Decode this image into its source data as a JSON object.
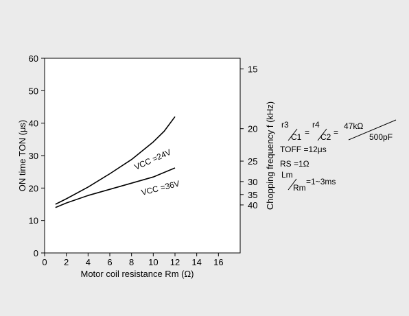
{
  "chart_data": {
    "type": "line",
    "xlabel": "Motor coil resistance Rm (Ω)",
    "ylabel": "ON time TON (μs)",
    "y2label": "Chopping frequency f (kHz)",
    "xlim": [
      0,
      18
    ],
    "ylim": [
      0,
      60
    ],
    "x_ticks": [
      "0",
      "2",
      "4",
      "6",
      "8",
      "10",
      "12",
      "14",
      "16"
    ],
    "y_ticks": [
      "0",
      "10",
      "20",
      "30",
      "40",
      "50",
      "60"
    ],
    "y2_ticks": [
      {
        "label": "15",
        "ton": 56.7
      },
      {
        "label": "20",
        "ton": 38.3
      },
      {
        "label": "25",
        "ton": 28.3
      },
      {
        "label": "30",
        "ton": 22.0
      },
      {
        "label": "35",
        "ton": 18.0
      },
      {
        "label": "40",
        "ton": 14.8
      }
    ],
    "series": [
      {
        "name": "VCC =24V",
        "x": [
          1,
          2,
          4,
          6,
          8,
          10,
          11,
          12
        ],
        "y": [
          15.0,
          16.7,
          20.3,
          24.4,
          28.8,
          34.2,
          37.5,
          42.0
        ]
      },
      {
        "name": "VCC =36V",
        "x": [
          1,
          2,
          4,
          6,
          8,
          10,
          12
        ],
        "y": [
          14.0,
          15.4,
          17.7,
          19.6,
          21.5,
          23.4,
          26.2
        ]
      }
    ],
    "annotations": {
      "formula_r3": "r3",
      "formula_c1": "C1",
      "formula_r4": "r4",
      "formula_c2": "C2",
      "formula_eq1": "=",
      "formula_eq2": "=",
      "formula_num": "47kΩ",
      "formula_den": "500pF",
      "toff": "TOFF =12μs",
      "rs": "RS =1Ω",
      "lm": "Lm",
      "rm": "Rm",
      "lr_value": "=1~3ms"
    }
  }
}
